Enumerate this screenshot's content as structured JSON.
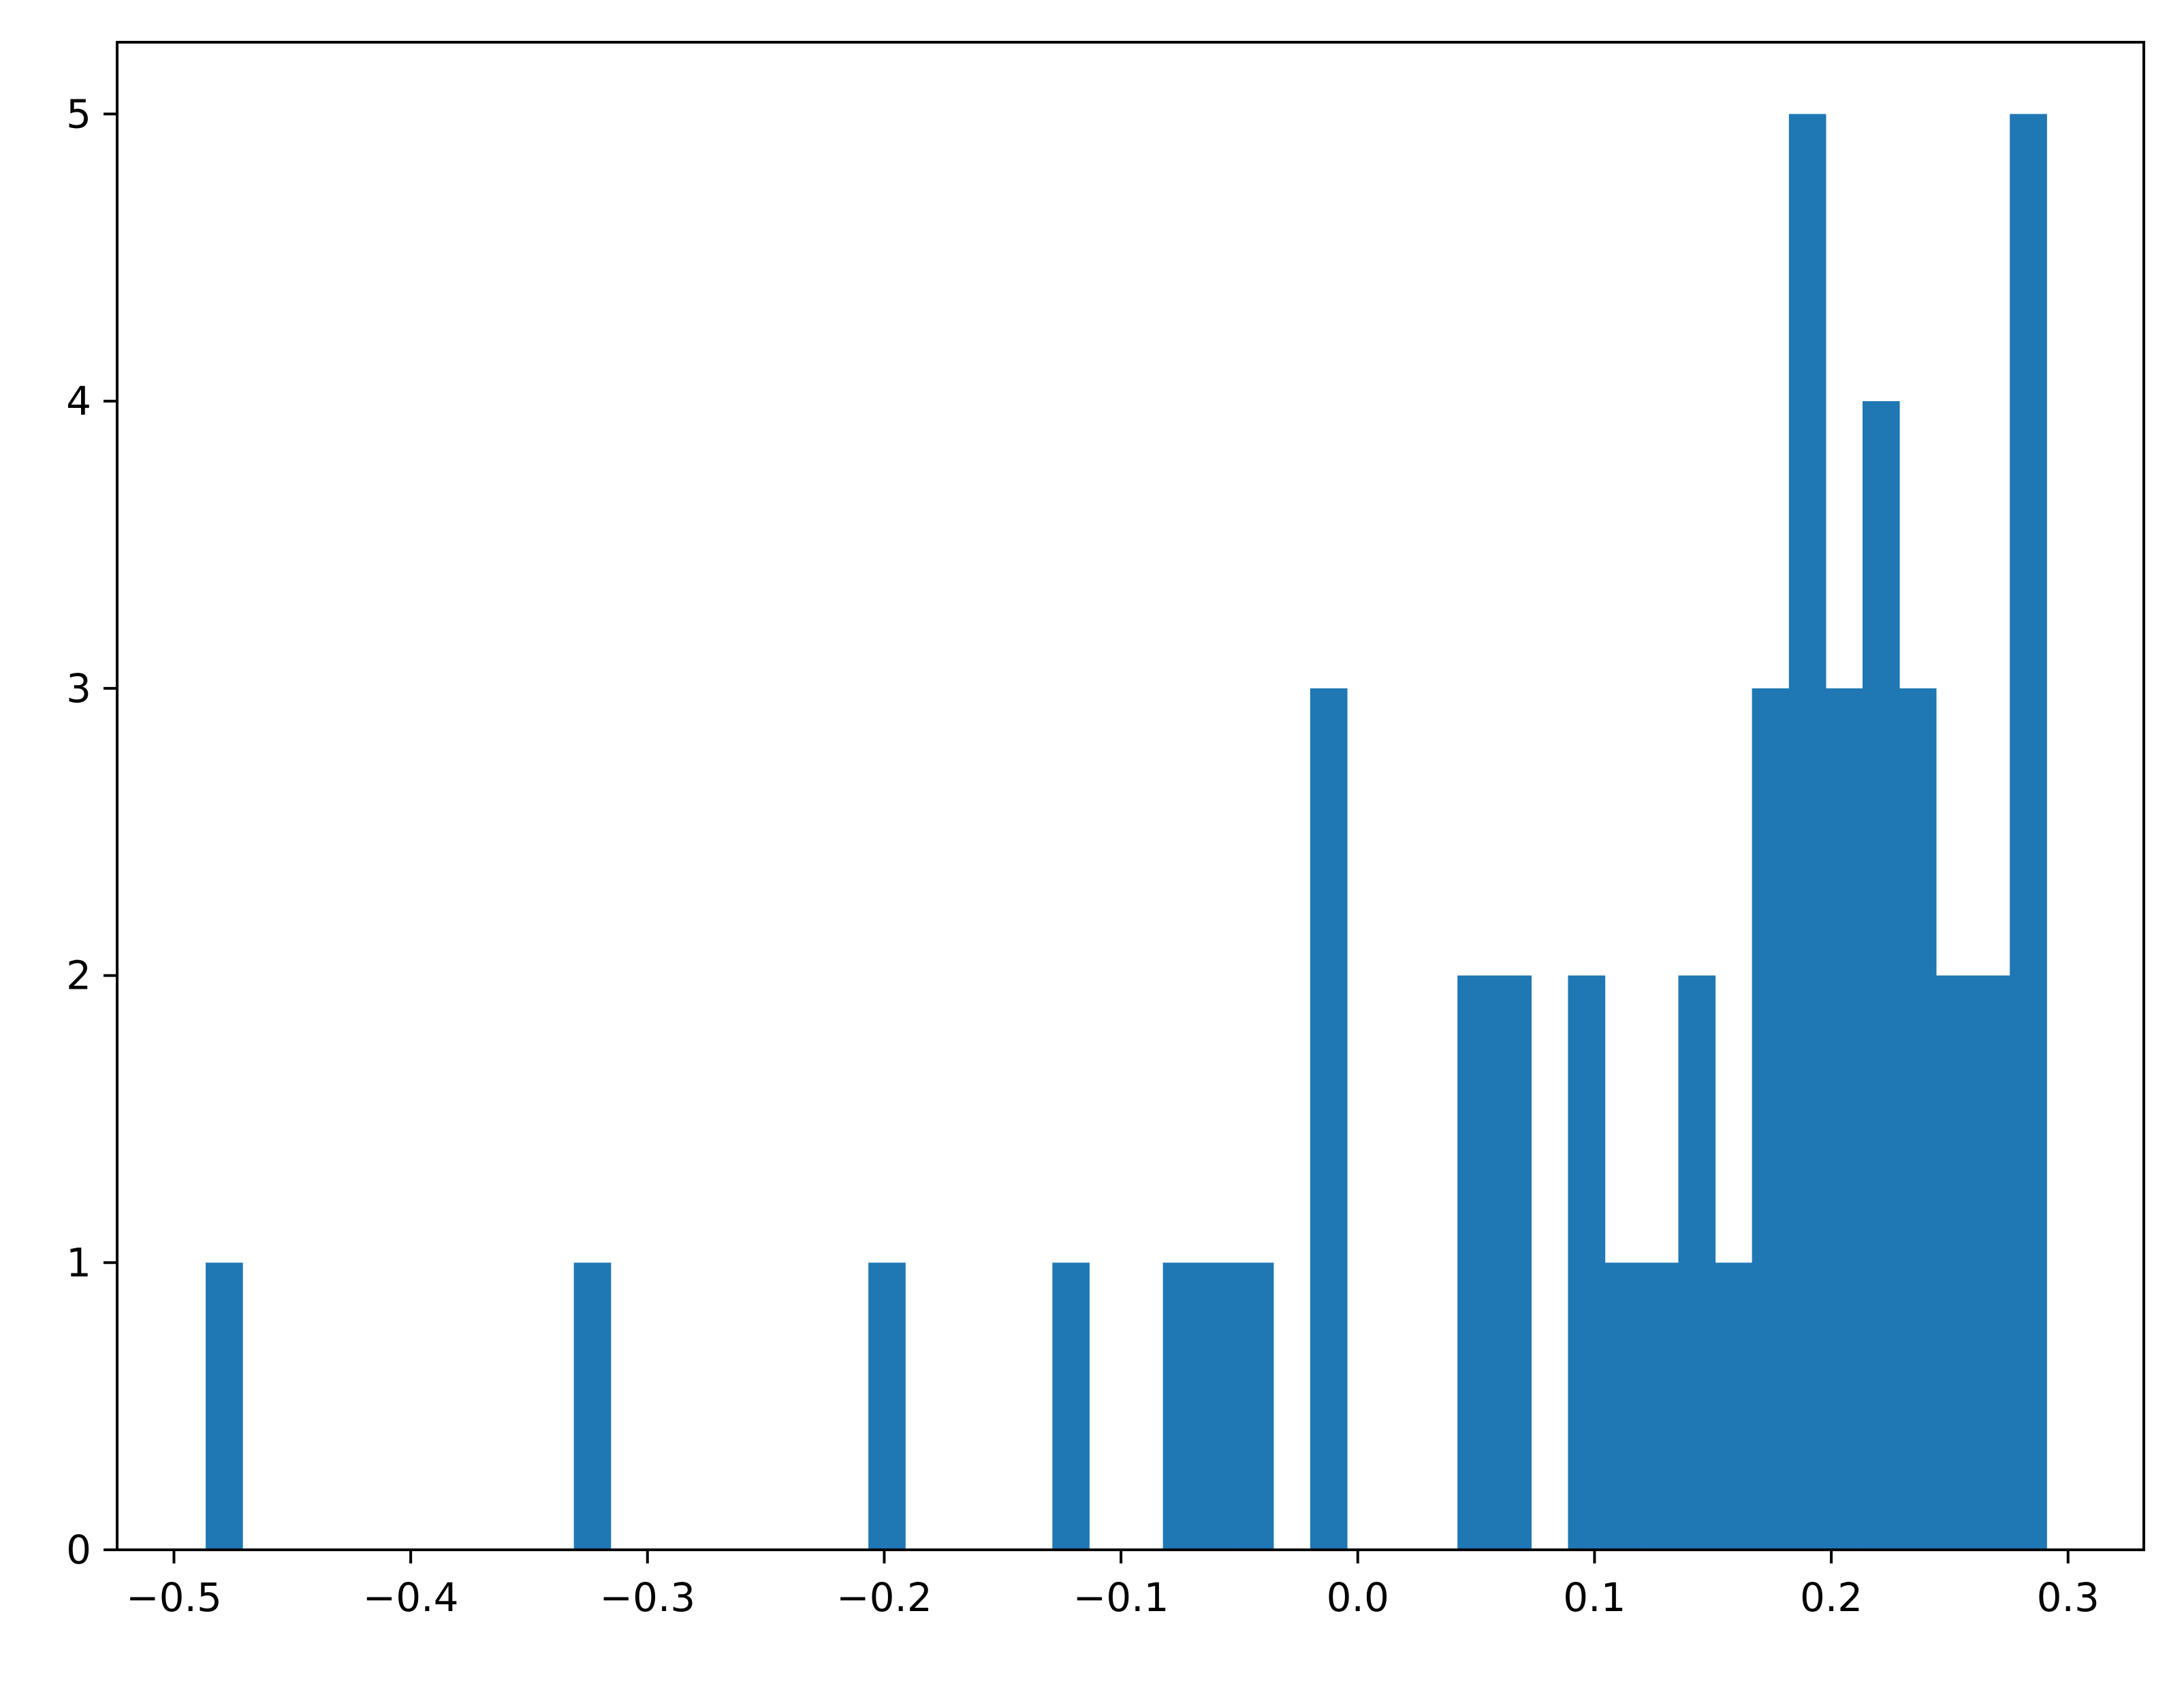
{
  "chart_data": {
    "type": "bar",
    "title": "",
    "xlabel": "",
    "ylabel": "",
    "xlim": [
      -0.524,
      0.332
    ],
    "ylim": [
      0,
      5.25
    ],
    "grid": false,
    "bar_color": "#1f77b4",
    "bin_width": 0.01555,
    "bins": [
      {
        "x0": -0.4866,
        "count": 1
      },
      {
        "x0": -0.3311,
        "count": 1
      },
      {
        "x0": -0.2067,
        "count": 1
      },
      {
        "x0": -0.129,
        "count": 1
      },
      {
        "x0": -0.0823,
        "count": 1
      },
      {
        "x0": -0.0668,
        "count": 1
      },
      {
        "x0": -0.0512,
        "count": 1
      },
      {
        "x0": -0.0201,
        "count": 3
      },
      {
        "x0": 0.0421,
        "count": 2
      },
      {
        "x0": 0.0577,
        "count": 2
      },
      {
        "x0": 0.0888,
        "count": 2
      },
      {
        "x0": 0.1043,
        "count": 1
      },
      {
        "x0": 0.1199,
        "count": 1
      },
      {
        "x0": 0.1354,
        "count": 2
      },
      {
        "x0": 0.151,
        "count": 1
      },
      {
        "x0": 0.1665,
        "count": 3
      },
      {
        "x0": 0.1821,
        "count": 5
      },
      {
        "x0": 0.1976,
        "count": 3
      },
      {
        "x0": 0.2132,
        "count": 4
      },
      {
        "x0": 0.2287,
        "count": 3
      },
      {
        "x0": 0.2443,
        "count": 2
      },
      {
        "x0": 0.2598,
        "count": 2
      },
      {
        "x0": 0.2754,
        "count": 5
      }
    ],
    "x_ticks": [
      {
        "value": -0.5,
        "label": "−0.5"
      },
      {
        "value": -0.4,
        "label": "−0.4"
      },
      {
        "value": -0.3,
        "label": "−0.3"
      },
      {
        "value": -0.2,
        "label": "−0.2"
      },
      {
        "value": -0.1,
        "label": "−0.1"
      },
      {
        "value": 0.0,
        "label": "0.0"
      },
      {
        "value": 0.1,
        "label": "0.1"
      },
      {
        "value": 0.2,
        "label": "0.2"
      },
      {
        "value": 0.3,
        "label": "0.3"
      }
    ],
    "y_ticks": [
      {
        "value": 0,
        "label": "0"
      },
      {
        "value": 1,
        "label": "1"
      },
      {
        "value": 2,
        "label": "2"
      },
      {
        "value": 3,
        "label": "3"
      },
      {
        "value": 4,
        "label": "4"
      },
      {
        "value": 5,
        "label": "5"
      }
    ]
  }
}
